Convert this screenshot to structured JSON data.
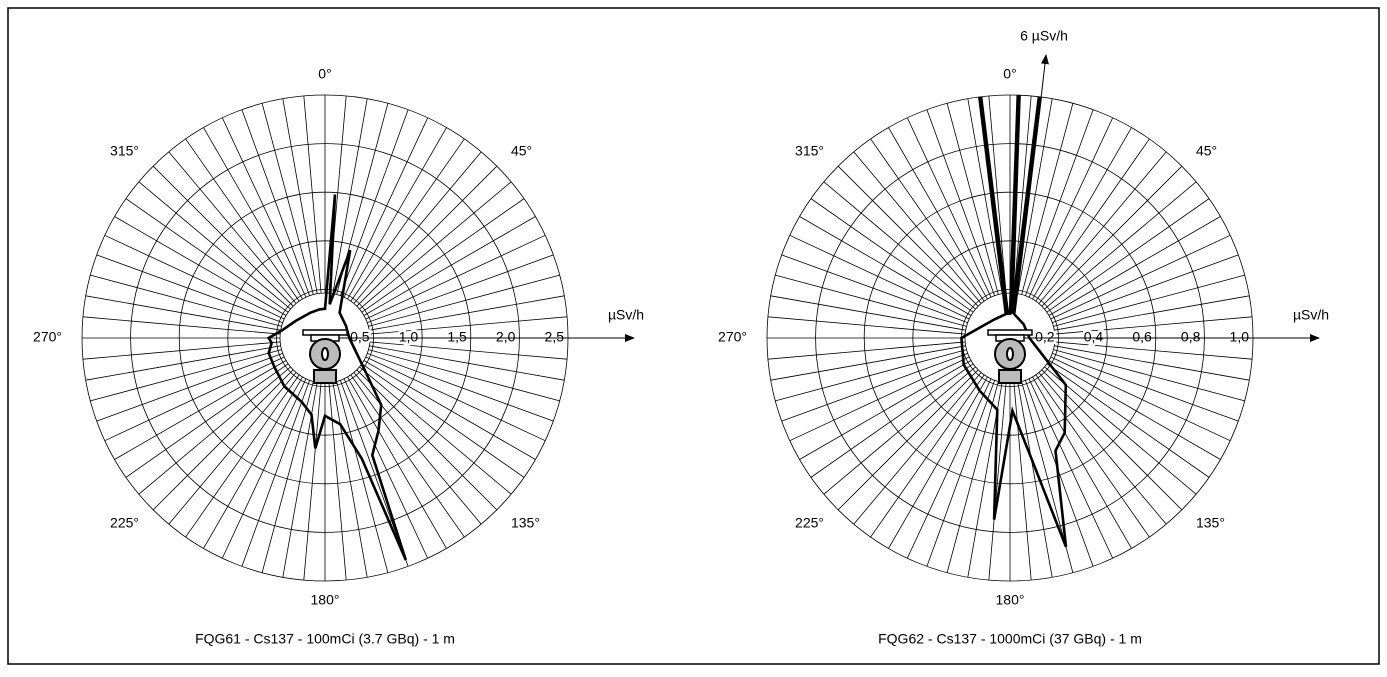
{
  "chart_data": [
    {
      "type": "polar",
      "title": "FQG61 - Cs137 - 100mCi (3.7 GBq) - 1 m",
      "r_label": "µSv/h",
      "rlim": [
        0,
        2.5
      ],
      "rticks": [
        {
          "value": 0.5,
          "label": "0,5"
        },
        {
          "value": 1.0,
          "label": "1,0"
        },
        {
          "value": 1.5,
          "label": "1,5"
        },
        {
          "value": 2.0,
          "label": "2,0"
        },
        {
          "value": 2.5,
          "label": "2,5"
        }
      ],
      "angle_labels": [
        {
          "value": 0,
          "label": "0°"
        },
        {
          "value": 45,
          "label": "45°"
        },
        {
          "value": 135,
          "label": "135°"
        },
        {
          "value": 180,
          "label": "180°"
        },
        {
          "value": 225,
          "label": "225°"
        },
        {
          "value": 270,
          "label": "270°"
        },
        {
          "value": 315,
          "label": "315°"
        }
      ],
      "color": "#000000",
      "theta": [
        0,
        4,
        8,
        16,
        30,
        60,
        90,
        120,
        140,
        150,
        158,
        160,
        163,
        170,
        180,
        185,
        190,
        200,
        220,
        240,
        255,
        265,
        270,
        280,
        300,
        330,
        350
      ],
      "values": [
        0.3,
        1.48,
        0.35,
        0.94,
        0.3,
        0.25,
        0.25,
        0.4,
        0.9,
        1.1,
        1.3,
        2.43,
        1.3,
        0.9,
        0.8,
        1.14,
        0.8,
        0.7,
        0.65,
        0.6,
        0.6,
        0.55,
        0.58,
        0.45,
        0.35,
        0.3,
        0.3
      ]
    },
    {
      "type": "polar",
      "title": "FQG62 - Cs137 - 1000mCi (37 GBq) - 1 m",
      "r_label": "µSv/h",
      "annotation": "6 µSv/h",
      "rlim": [
        0,
        1.0
      ],
      "rticks": [
        {
          "value": 0.2,
          "label": "0,2"
        },
        {
          "value": 0.4,
          "label": "0,4"
        },
        {
          "value": 0.6,
          "label": "0,6"
        },
        {
          "value": 0.8,
          "label": "0,8"
        },
        {
          "value": 1.0,
          "label": "1,0"
        }
      ],
      "angle_labels": [
        {
          "value": 0,
          "label": "0°"
        },
        {
          "value": 45,
          "label": "45°"
        },
        {
          "value": 135,
          "label": "135°"
        },
        {
          "value": 180,
          "label": "180°"
        },
        {
          "value": 225,
          "label": "225°"
        },
        {
          "value": 270,
          "label": "270°"
        },
        {
          "value": 315,
          "label": "315°"
        }
      ],
      "color": "#000000",
      "theta": [
        0,
        2,
        5,
        7,
        10,
        45,
        90,
        130,
        150,
        158,
        165,
        170,
        178,
        185,
        190,
        210,
        240,
        270,
        320,
        350,
        353,
        355
      ],
      "values": [
        0.1,
        6,
        0.1,
        6,
        0.1,
        0.08,
        0.08,
        0.3,
        0.45,
        0.5,
        0.89,
        0.5,
        0.3,
        0.75,
        0.3,
        0.25,
        0.22,
        0.2,
        0.1,
        0.1,
        6,
        0.1
      ]
    }
  ]
}
